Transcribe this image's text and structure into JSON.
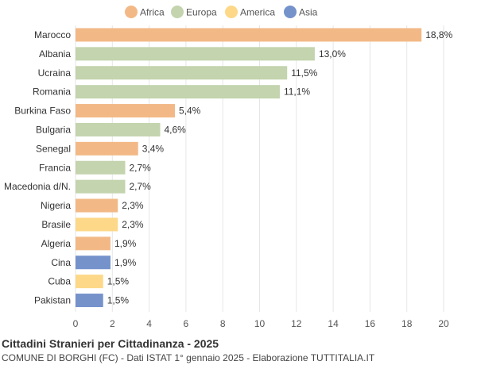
{
  "chart_data": {
    "type": "bar",
    "orientation": "horizontal",
    "title": "Cittadini Stranieri per Cittadinanza - 2025",
    "subtitle": "COMUNE DI BORGHI (FC) - Dati ISTAT 1° gennaio 2025 - Elaborazione TUTTITALIA.IT",
    "xlim": [
      0,
      20
    ],
    "xticks": [
      0,
      2,
      4,
      6,
      8,
      10,
      12,
      14,
      16,
      18,
      20
    ],
    "grid": true,
    "legend_position": "top",
    "legend": [
      {
        "name": "Africa",
        "color": "#f2b987"
      },
      {
        "name": "Europa",
        "color": "#c3d4ae"
      },
      {
        "name": "America",
        "color": "#fdd888"
      },
      {
        "name": "Asia",
        "color": "#7592cb"
      }
    ],
    "categories": [
      "Marocco",
      "Albania",
      "Ucraina",
      "Romania",
      "Burkina Faso",
      "Bulgaria",
      "Senegal",
      "Francia",
      "Macedonia d/N.",
      "Nigeria",
      "Brasile",
      "Algeria",
      "Cina",
      "Cuba",
      "Pakistan"
    ],
    "values": [
      18.8,
      13.0,
      11.5,
      11.1,
      5.4,
      4.6,
      3.4,
      2.7,
      2.7,
      2.3,
      2.3,
      1.9,
      1.9,
      1.5,
      1.5
    ],
    "value_labels": [
      "18,8%",
      "13,0%",
      "11,5%",
      "11,1%",
      "5,4%",
      "4,6%",
      "3,4%",
      "2,7%",
      "2,7%",
      "2,3%",
      "2,3%",
      "1,9%",
      "1,9%",
      "1,5%",
      "1,5%"
    ],
    "groups": [
      "Africa",
      "Europa",
      "Europa",
      "Europa",
      "Africa",
      "Europa",
      "Africa",
      "Europa",
      "Europa",
      "Africa",
      "America",
      "Africa",
      "Asia",
      "America",
      "Asia"
    ]
  }
}
